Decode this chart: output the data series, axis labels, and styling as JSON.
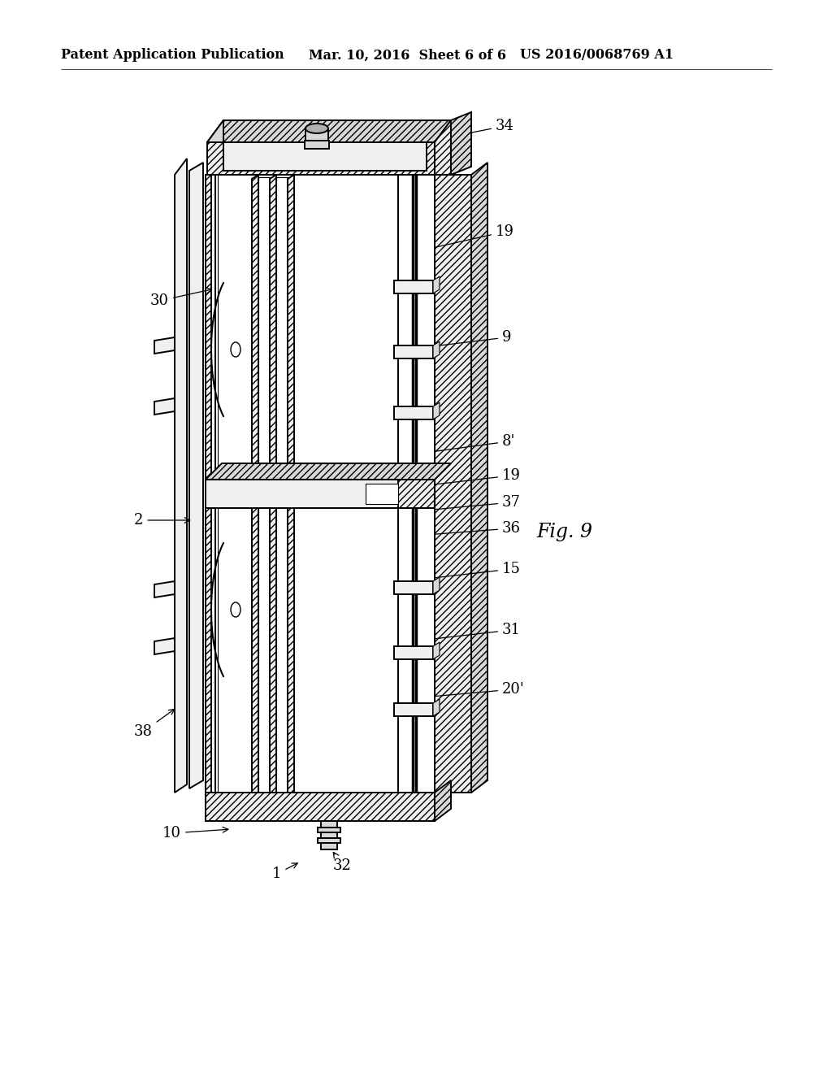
{
  "background_color": "#ffffff",
  "header_left": "Patent Application Publication",
  "header_mid": "Mar. 10, 2016  Sheet 6 of 6",
  "header_right": "US 2016/0068769 A1",
  "figure_label": "Fig. 9",
  "header_fontsize": 11.5,
  "label_fontsize": 13,
  "fig_label_fontsize": 17,
  "line_color": "#000000",
  "hatch_color": "#444444",
  "bg_white": "#ffffff",
  "bg_light": "#f0f0f0",
  "bg_gray": "#d8d8d8",
  "bg_dark": "#b0b0b0",
  "lw_main": 1.4,
  "lw_thick": 2.0,
  "lw_thin": 0.8
}
